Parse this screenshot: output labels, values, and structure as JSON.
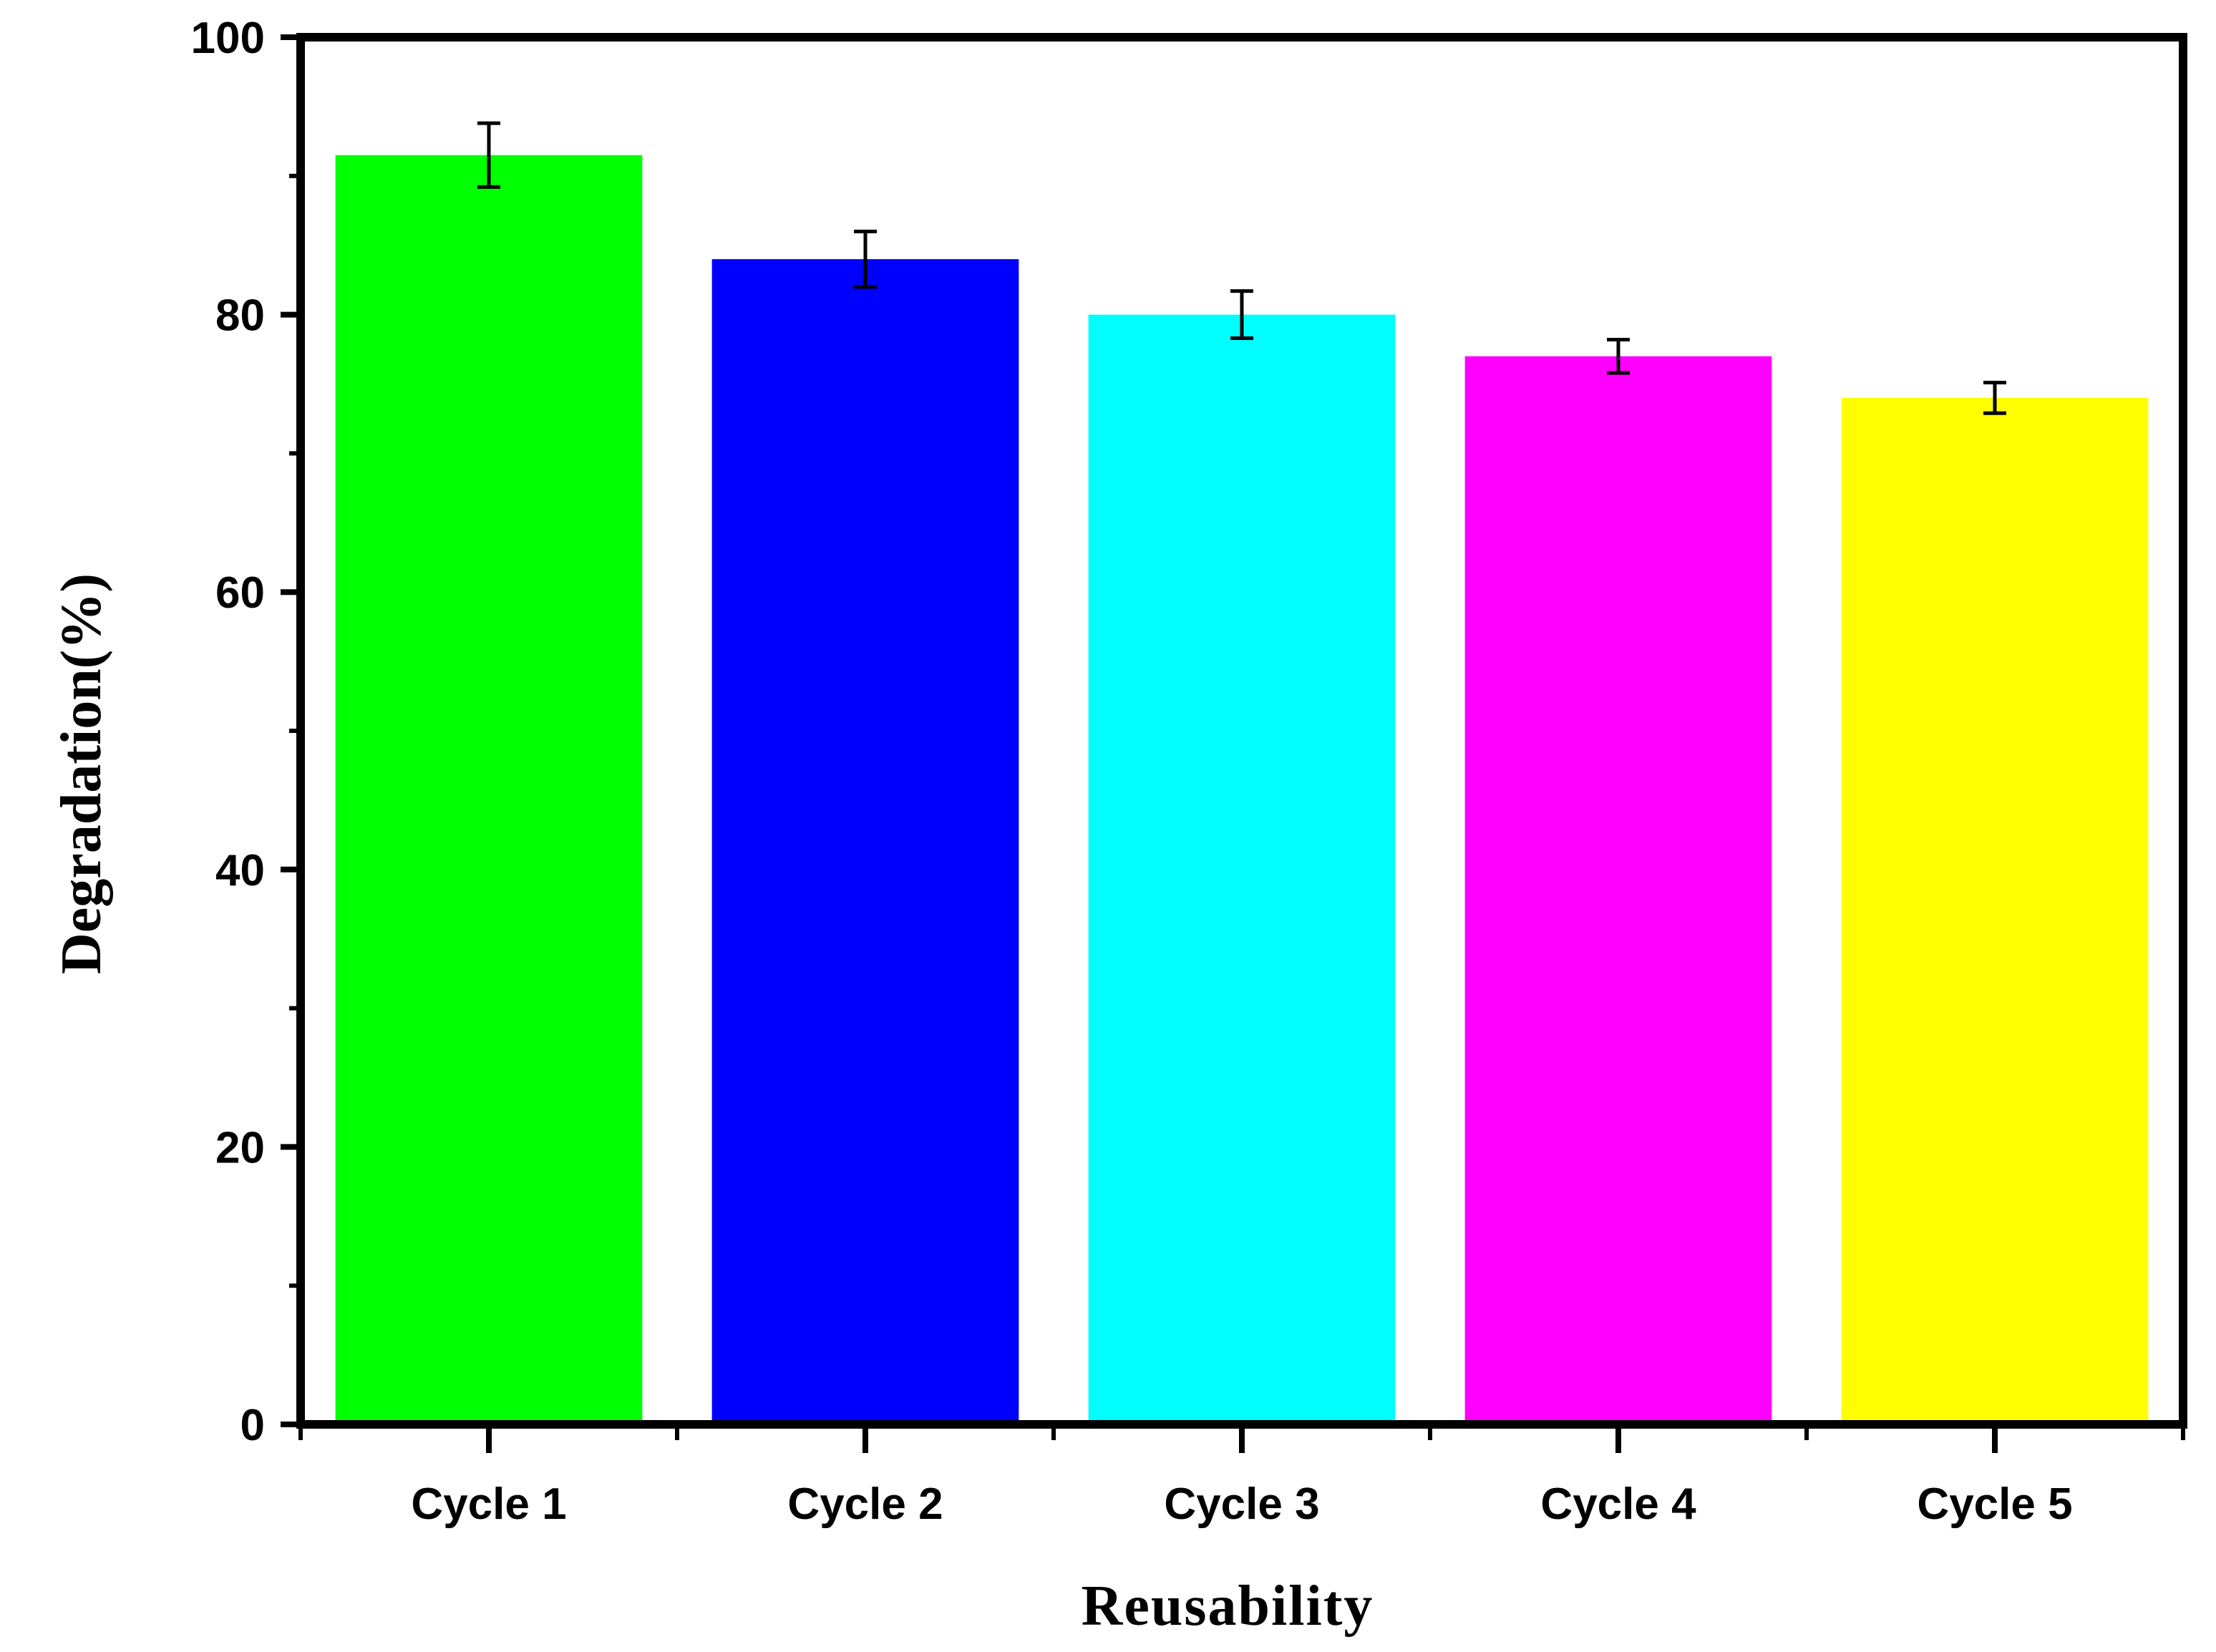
{
  "chart_data": {
    "type": "bar",
    "title": "",
    "xlabel": "Reusability",
    "ylabel": "Degradation(%)",
    "categories": [
      "Cycle 1",
      "Cycle 2",
      "Cycle 3",
      "Cycle 4",
      "Cycle 5"
    ],
    "values": [
      91.5,
      84,
      80,
      77,
      74
    ],
    "errors": [
      2.3,
      2.0,
      1.7,
      1.2,
      1.1
    ],
    "colors": [
      "#00ff00",
      "#0000ff",
      "#00ffff",
      "#ff00ff",
      "#ffff00"
    ],
    "ylim": [
      0,
      100
    ],
    "yticks": [
      0,
      20,
      40,
      60,
      80,
      100
    ],
    "yticks_minor": [
      10,
      30,
      50,
      70,
      90
    ],
    "grid": false,
    "legend": "none"
  }
}
